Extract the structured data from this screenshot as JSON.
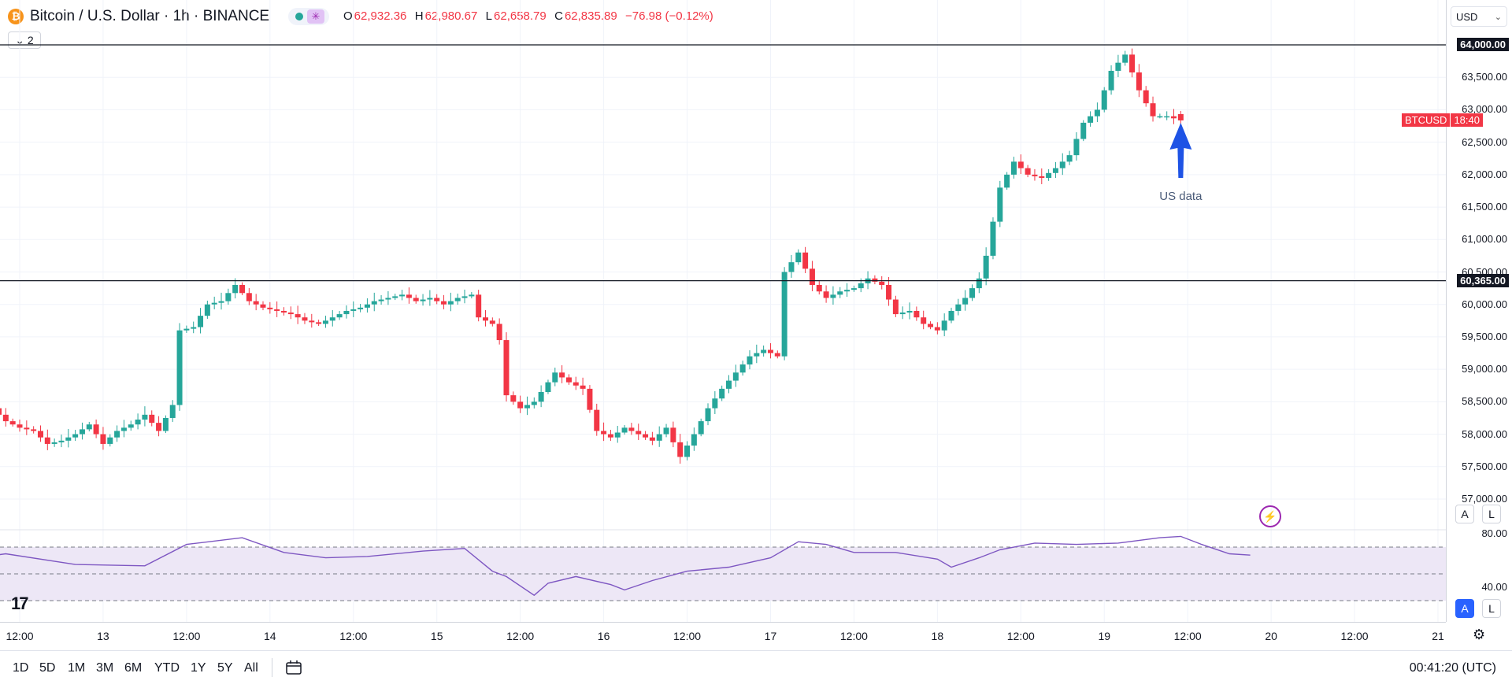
{
  "header": {
    "symbol_title": "Bitcoin / U.S. Dollar · 1h · BINANCE",
    "coin_glyph": "₿",
    "ohlc": {
      "o_key": "O",
      "o_val": "62,932.36",
      "h_key": "H",
      "h_val": "62,980.67",
      "l_key": "L",
      "l_val": "62,658.79",
      "c_key": "C",
      "c_val": "62,835.89",
      "change": "−76.98 (−0.12%)"
    },
    "indicator_count": "2"
  },
  "price_scale": {
    "currency": "USD",
    "ticks": [
      "63,500.00",
      "63,000.00",
      "62,500.00",
      "62,000.00",
      "61,500.00",
      "61,000.00",
      "60,500.00",
      "60,000.00",
      "59,500.00",
      "59,000.00",
      "58,500.00",
      "58,000.00",
      "57,500.00",
      "57,000.00"
    ],
    "tick_values": [
      63500,
      63000,
      62500,
      62000,
      61500,
      61000,
      60500,
      60000,
      59500,
      59000,
      58500,
      58000,
      57500,
      57000
    ],
    "horizontal_lines": [
      {
        "label": "64,000.00",
        "value": 64000
      },
      {
        "label": "60,365.00",
        "value": 60365
      }
    ],
    "last_price_symbol": "BTCUSD",
    "countdown": "18:40",
    "buttons": [
      "A",
      "L"
    ]
  },
  "rsi_scale": {
    "ticks": [
      "80.00",
      "40.00"
    ],
    "tick_values": [
      80,
      40
    ],
    "buttons": [
      "A",
      "L"
    ]
  },
  "time_axis": {
    "ticks": [
      {
        "label": "12:00",
        "t": 12
      },
      {
        "label": "13",
        "t": 24
      },
      {
        "label": "12:00",
        "t": 36
      },
      {
        "label": "14",
        "t": 48
      },
      {
        "label": "12:00",
        "t": 60
      },
      {
        "label": "15",
        "t": 72
      },
      {
        "label": "12:00",
        "t": 84
      },
      {
        "label": "16",
        "t": 96
      },
      {
        "label": "12:00",
        "t": 108
      },
      {
        "label": "17",
        "t": 120
      },
      {
        "label": "12:00",
        "t": 132
      },
      {
        "label": "18",
        "t": 144
      },
      {
        "label": "12:00",
        "t": 156
      },
      {
        "label": "19",
        "t": 168
      },
      {
        "label": "12:00",
        "t": 180
      },
      {
        "label": "20",
        "t": 192
      },
      {
        "label": "12:00",
        "t": 204
      },
      {
        "label": "21",
        "t": 216
      }
    ]
  },
  "footer": {
    "ranges": [
      "1D",
      "5D",
      "1M",
      "3M",
      "6M",
      "YTD",
      "1Y",
      "5Y",
      "All"
    ],
    "clock": "00:41:20 (UTC)"
  },
  "annotation": {
    "text": "US data",
    "t": 179,
    "price": 61950
  },
  "colors": {
    "up": "#26a69a",
    "down": "#f23645",
    "rsi_line": "#7e57c2",
    "rsi_band": "#ede7f6",
    "arrow": "#1e53e5"
  },
  "chart_data": [
    {
      "type": "candlestick",
      "title": "Bitcoin / U.S. Dollar · 1h · BINANCE",
      "x_unit": "hours from 12 Jun 00:00",
      "ylim": [
        56800,
        64250
      ],
      "price_levels": [
        64000,
        60365
      ],
      "anchors_close": [
        [
          0,
          58150
        ],
        [
          2,
          57950
        ],
        [
          4,
          57650
        ],
        [
          6,
          57500
        ],
        [
          8,
          58400
        ],
        [
          10,
          58200
        ],
        [
          12,
          58100
        ],
        [
          14,
          58050
        ],
        [
          16,
          57850
        ],
        [
          18,
          57900
        ],
        [
          20,
          58000
        ],
        [
          22,
          58150
        ],
        [
          24,
          57850
        ],
        [
          26,
          58050
        ],
        [
          28,
          58150
        ],
        [
          30,
          58300
        ],
        [
          32,
          58050
        ],
        [
          34,
          58450
        ],
        [
          35,
          59600
        ],
        [
          37,
          59650
        ],
        [
          39,
          60000
        ],
        [
          41,
          60050
        ],
        [
          43,
          60300
        ],
        [
          45,
          60050
        ],
        [
          47,
          59950
        ],
        [
          49,
          59900
        ],
        [
          51,
          59850
        ],
        [
          53,
          59750
        ],
        [
          55,
          59700
        ],
        [
          57,
          59800
        ],
        [
          59,
          59900
        ],
        [
          61,
          59950
        ],
        [
          63,
          60050
        ],
        [
          65,
          60100
        ],
        [
          67,
          60150
        ],
        [
          69,
          60050
        ],
        [
          71,
          60100
        ],
        [
          73,
          60000
        ],
        [
          75,
          60100
        ],
        [
          77,
          60150
        ],
        [
          78,
          59800
        ],
        [
          80,
          59700
        ],
        [
          81,
          59450
        ],
        [
          82,
          58600
        ],
        [
          84,
          58400
        ],
        [
          86,
          58500
        ],
        [
          88,
          58800
        ],
        [
          89,
          58950
        ],
        [
          91,
          58800
        ],
        [
          93,
          58700
        ],
        [
          95,
          58050
        ],
        [
          97,
          57950
        ],
        [
          99,
          58100
        ],
        [
          101,
          58000
        ],
        [
          103,
          57900
        ],
        [
          105,
          58100
        ],
        [
          107,
          57650
        ],
        [
          109,
          58000
        ],
        [
          111,
          58400
        ],
        [
          113,
          58700
        ],
        [
          115,
          58950
        ],
        [
          117,
          59200
        ],
        [
          119,
          59300
        ],
        [
          121,
          59200
        ],
        [
          122,
          60500
        ],
        [
          124,
          60800
        ],
        [
          126,
          60300
        ],
        [
          128,
          60100
        ],
        [
          130,
          60200
        ],
        [
          132,
          60250
        ],
        [
          134,
          60400
        ],
        [
          136,
          60300
        ],
        [
          138,
          59850
        ],
        [
          140,
          59900
        ],
        [
          142,
          59700
        ],
        [
          144,
          59600
        ],
        [
          146,
          59900
        ],
        [
          148,
          60100
        ],
        [
          150,
          60400
        ],
        [
          151,
          60750
        ],
        [
          153,
          61800
        ],
        [
          155,
          62200
        ],
        [
          157,
          62000
        ],
        [
          159,
          61950
        ],
        [
          161,
          62100
        ],
        [
          163,
          62300
        ],
        [
          165,
          62800
        ],
        [
          167,
          63000
        ],
        [
          169,
          63600
        ],
        [
          171,
          63850
        ],
        [
          173,
          63300
        ],
        [
          175,
          62900
        ],
        [
          177,
          62900
        ],
        [
          179,
          62836
        ]
      ],
      "last": {
        "o": 62932.36,
        "h": 62980.67,
        "l": 62658.79,
        "c": 62835.89
      }
    },
    {
      "type": "line",
      "title": "",
      "series": [
        {
          "name": "",
          "points": [
            [
              0,
              58
            ],
            [
              10,
              65
            ],
            [
              20,
              57
            ],
            [
              30,
              56
            ],
            [
              36,
              72
            ],
            [
              44,
              77
            ],
            [
              50,
              66
            ],
            [
              56,
              62
            ],
            [
              62,
              63
            ],
            [
              70,
              67
            ],
            [
              76,
              69
            ],
            [
              80,
              52
            ],
            [
              82,
              48
            ],
            [
              86,
              34
            ],
            [
              88,
              43
            ],
            [
              92,
              48
            ],
            [
              97,
              42
            ],
            [
              99,
              38
            ],
            [
              103,
              45
            ],
            [
              108,
              52
            ],
            [
              114,
              55
            ],
            [
              120,
              62
            ],
            [
              124,
              74
            ],
            [
              128,
              72
            ],
            [
              132,
              66
            ],
            [
              138,
              66
            ],
            [
              144,
              61
            ],
            [
              146,
              55
            ],
            [
              150,
              62
            ],
            [
              153,
              68
            ],
            [
              158,
              73
            ],
            [
              164,
              72
            ],
            [
              170,
              73
            ],
            [
              176,
              77
            ],
            [
              179,
              78
            ],
            [
              182,
              72
            ],
            [
              186,
              65
            ],
            [
              189,
              64
            ]
          ]
        }
      ],
      "ylim": [
        25,
        90
      ],
      "guides": [
        70,
        50,
        30
      ]
    }
  ]
}
